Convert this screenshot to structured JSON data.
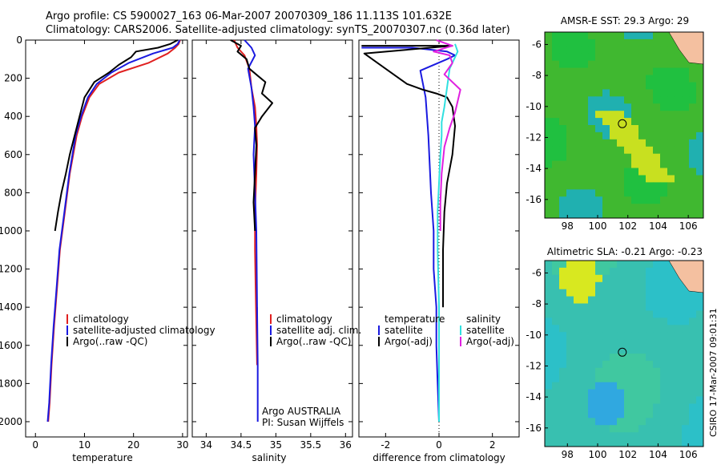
{
  "header": {
    "line1": "Argo profile: CS 5900027_163 06-Mar-2007 20070309_186 11.113S 101.632E",
    "line2": "Climatology: CARS2006. Satellite-adjusted climatology: synTS_20070307.nc (0.36d later)"
  },
  "footer_stamp": "CSIRO 17-Mar-2007 09:01:31",
  "colors": {
    "climatology": "#e02020",
    "satellite": "#1a1ae0",
    "argo": "#000000",
    "salinity_sat": "#30e0e0",
    "salinity_argo": "#e020e0"
  },
  "chart_data": [
    {
      "type": "line",
      "id": "temperature",
      "xlabel": "temperature",
      "ylabel": "",
      "xlim": [
        -2,
        31
      ],
      "ylim": [
        2080,
        0
      ],
      "xticks": [
        0,
        10,
        20,
        30
      ],
      "xtick_labels": [
        "0",
        "10",
        "20",
        "30"
      ],
      "yticks": [
        0,
        200,
        400,
        600,
        800,
        1000,
        1200,
        1400,
        1600,
        1800,
        2000
      ],
      "ytick_labels": [
        "0",
        "200",
        "400",
        "600",
        "800",
        "1000",
        "1200",
        "1400",
        "1600",
        "1800",
        "2000"
      ],
      "legend": [
        "climatology",
        "satellite-adjusted climatology",
        "Argo(..raw -QC)"
      ],
      "series": [
        {
          "name": "climatology",
          "color": "#e02020",
          "x": [
            29.5,
            29.2,
            28.5,
            27.0,
            23.0,
            17.0,
            13.0,
            11.0,
            9.5,
            8.4,
            7.0,
            6.0,
            5.0,
            4.4,
            3.8,
            3.3,
            2.9,
            2.6
          ],
          "y": [
            0,
            20,
            40,
            70,
            120,
            170,
            230,
            300,
            400,
            500,
            700,
            900,
            1100,
            1300,
            1500,
            1700,
            1900,
            2000
          ]
        },
        {
          "name": "satellite-adjusted climatology",
          "color": "#1a1ae0",
          "x": [
            29.4,
            29.0,
            28.0,
            24.0,
            19.0,
            15.5,
            12.5,
            10.7,
            9.3,
            8.2,
            6.9,
            5.9,
            4.9,
            4.3,
            3.7,
            3.2,
            2.8,
            2.5
          ],
          "y": [
            0,
            20,
            40,
            70,
            120,
            170,
            230,
            300,
            400,
            500,
            700,
            900,
            1100,
            1300,
            1500,
            1700,
            1900,
            2000
          ]
        },
        {
          "name": "Argo(..raw -QC)",
          "color": "#000000",
          "x": [
            29.0,
            27.5,
            25.0,
            20.5,
            19.5,
            17.0,
            15.0,
            12.0,
            10.0,
            9.0,
            8.0,
            7.0,
            6.2,
            5.3,
            4.6,
            4.0
          ],
          "y": [
            0,
            20,
            40,
            60,
            90,
            130,
            170,
            220,
            300,
            400,
            500,
            600,
            700,
            800,
            900,
            1000
          ]
        }
      ]
    },
    {
      "type": "line",
      "id": "salinity",
      "xlabel": "salinity",
      "xlim": [
        33.8,
        36.1
      ],
      "ylim": [
        2080,
        0
      ],
      "xticks": [
        34,
        34.5,
        35,
        35.5,
        36
      ],
      "xtick_labels": [
        "34",
        "34.5",
        "35",
        "35.5",
        "36"
      ],
      "legend": [
        "climatology",
        "satellite adj. clim.",
        "Argo(..raw -QC)"
      ],
      "annotation": [
        "Argo AUSTRALIA",
        "PI: Susan Wijffels"
      ],
      "series": [
        {
          "name": "climatology",
          "color": "#e02020",
          "x": [
            34.4,
            34.45,
            34.55,
            34.62,
            34.65,
            34.7,
            34.72,
            34.73,
            34.72,
            34.7,
            34.7,
            34.71,
            34.72,
            34.73,
            34.73
          ],
          "y": [
            0,
            40,
            80,
            150,
            250,
            350,
            450,
            550,
            700,
            900,
            1100,
            1300,
            1500,
            1700,
            1400
          ]
        },
        {
          "name": "satellite adj. clim.",
          "color": "#1a1ae0",
          "x": [
            34.55,
            34.65,
            34.7,
            34.6,
            34.65,
            34.68,
            34.7,
            34.68,
            34.7,
            34.72,
            34.73,
            34.74,
            34.74
          ],
          "y": [
            0,
            40,
            80,
            150,
            250,
            350,
            450,
            600,
            800,
            1000,
            1400,
            1700,
            2000
          ]
        },
        {
          "name": "Argo(..raw -QC)",
          "color": "#000000",
          "x": [
            34.35,
            34.5,
            34.45,
            34.58,
            34.62,
            34.75,
            34.85,
            34.8,
            34.95,
            34.8,
            34.7,
            34.72,
            34.7,
            34.68,
            34.7
          ],
          "y": [
            0,
            30,
            60,
            100,
            150,
            190,
            220,
            280,
            330,
            400,
            460,
            550,
            700,
            850,
            1000
          ]
        }
      ]
    },
    {
      "type": "line",
      "id": "difference",
      "xlabel": "difference from climatology",
      "xlim": [
        -3,
        3
      ],
      "ylim": [
        2080,
        0
      ],
      "xticks": [
        -2,
        0,
        2
      ],
      "xtick_labels": [
        "-2",
        "0",
        "2"
      ],
      "legend_temperature": [
        "temperature",
        "satellite",
        "Argo(-adj)"
      ],
      "legend_salinity": [
        "salinity",
        "satellite",
        "Argo(-adj)"
      ],
      "series": [
        {
          "name": "temperature satellite",
          "color": "#1a1ae0",
          "x": [
            -2.9,
            -1.0,
            0.3,
            0.6,
            0.3,
            -0.7,
            -0.5,
            -0.4,
            -0.3,
            -0.2,
            -0.2,
            -0.1,
            -0.1,
            -0.05,
            0.0
          ],
          "y": [
            40,
            40,
            60,
            80,
            100,
            160,
            300,
            500,
            800,
            1000,
            1200,
            1400,
            1600,
            1800,
            2000
          ]
        },
        {
          "name": "temperature Argo(-adj)",
          "color": "#000000",
          "x": [
            -2.9,
            0.5,
            -2.8,
            -2.0,
            -1.2,
            -0.6,
            -0.1,
            0.3,
            0.5,
            0.6,
            0.5,
            0.3,
            0.2,
            0.15,
            0.15
          ],
          "y": [
            30,
            30,
            70,
            150,
            230,
            260,
            280,
            300,
            350,
            450,
            600,
            750,
            900,
            1100,
            1400
          ]
        },
        {
          "name": "salinity satellite",
          "color": "#30e0e0",
          "x": [
            0.6,
            0.7,
            0.4,
            0.3,
            0.2,
            0.1,
            0.1,
            0.05,
            0.0,
            -0.05,
            -0.05,
            0.0,
            0.0,
            0.0,
            0.0,
            0.0
          ],
          "y": [
            20,
            60,
            150,
            250,
            350,
            430,
            500,
            600,
            750,
            900,
            1100,
            1400,
            1600,
            1800,
            1950,
            2000
          ]
        },
        {
          "name": "salinity Argo(-adj)",
          "color": "#e020e0",
          "x": [
            -0.1,
            0.5,
            -0.2,
            0.4,
            0.5,
            0.2,
            0.8,
            0.6,
            0.4,
            0.2,
            0.1,
            0.05,
            0.05
          ],
          "y": [
            0,
            30,
            60,
            80,
            120,
            180,
            260,
            380,
            460,
            560,
            700,
            850,
            1000
          ]
        }
      ]
    }
  ],
  "maps": [
    {
      "title": "AMSR-E SST: 29.3 Argo: 29",
      "xticks": [
        "98",
        "100",
        "102",
        "104",
        "106"
      ],
      "yticks": [
        "-6",
        "-8",
        "-10",
        "-12",
        "-14",
        "-16"
      ]
    },
    {
      "title": "Altimetric SLA: -0.21 Argo: -0.23",
      "xticks": [
        "98",
        "100",
        "102",
        "104",
        "106"
      ],
      "yticks": [
        "-6",
        "-8",
        "-10",
        "-12",
        "-14",
        "-16"
      ]
    }
  ]
}
